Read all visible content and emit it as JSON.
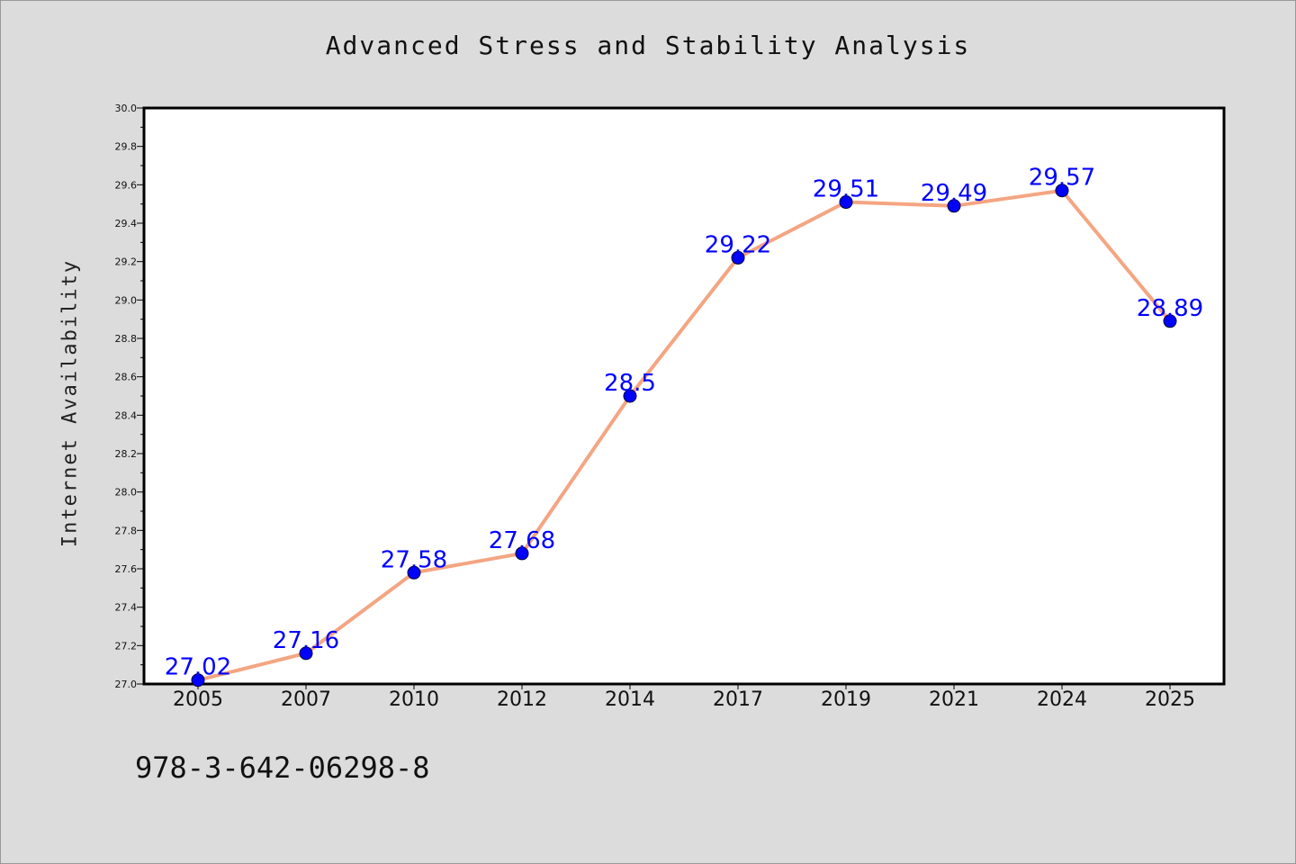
{
  "chart_data": {
    "type": "line",
    "title": "Advanced Stress and Stability Analysis",
    "xlabel": "",
    "ylabel": "Internet Availability",
    "categories": [
      "2005",
      "2007",
      "2010",
      "2012",
      "2014",
      "2017",
      "2019",
      "2021",
      "2024",
      "2025"
    ],
    "series": [
      {
        "values": [
          27.02,
          27.16,
          27.58,
          27.68,
          28.5,
          29.22,
          29.51,
          29.49,
          29.57,
          28.89
        ],
        "line_color": "#f4a582",
        "marker_color": "#0000ff"
      }
    ],
    "data_labels": [
      "27.02",
      "27.16",
      "27.58",
      "27.68",
      "28.5",
      "29.22",
      "29.51",
      "29.49",
      "29.57",
      "28.89"
    ],
    "ylim": [
      27.0,
      30.0
    ],
    "yticks": [
      "27.0",
      "27.2",
      "27.4",
      "27.6",
      "27.8",
      "28.0",
      "28.2",
      "28.4",
      "28.6",
      "28.8",
      "29.0",
      "29.2",
      "29.4",
      "29.6",
      "29.8",
      "30.0"
    ],
    "grid": false,
    "legend": "none",
    "colors": {
      "background": "#dcdcdc",
      "plot_area": "#ffffff",
      "line": "#f4a582",
      "marker": "#0000ff",
      "data_label": "#0000ff"
    }
  },
  "footer": {
    "isbn": "978-3-642-06298-8"
  }
}
